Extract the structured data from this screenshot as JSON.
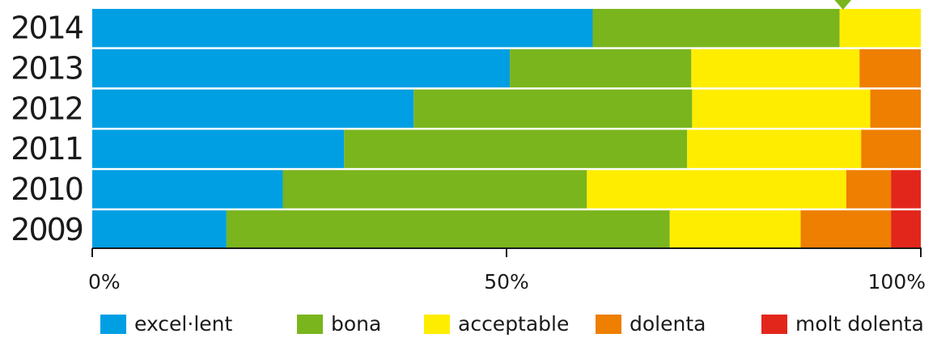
{
  "chart_data": {
    "type": "bar",
    "orientation": "horizontal",
    "stacked": true,
    "percent": true,
    "categories": [
      "2014",
      "2013",
      "2012",
      "2011",
      "2010",
      "2009"
    ],
    "series": [
      {
        "name": "excel·lent",
        "color": "#009fe3",
        "values": [
          60.4,
          50.4,
          38.8,
          30.4,
          23.0,
          16.2
        ]
      },
      {
        "name": "bona",
        "color": "#7ab51d",
        "values": [
          29.8,
          21.9,
          33.6,
          41.4,
          36.7,
          53.5
        ]
      },
      {
        "name": "acceptable",
        "color": "#ffed00",
        "values": [
          9.8,
          20.3,
          21.5,
          21.0,
          31.3,
          15.8
        ]
      },
      {
        "name": "dolenta",
        "color": "#ee7f00",
        "values": [
          0,
          7.4,
          6.1,
          7.2,
          5.4,
          10.9
        ]
      },
      {
        "name": "molt dolenta",
        "color": "#e3261c",
        "values": [
          0,
          0,
          0,
          0,
          3.6,
          3.6
        ]
      }
    ],
    "xlim": [
      0,
      100
    ],
    "xticks": [
      "0%",
      "50%",
      "100%"
    ],
    "xtick_values": [
      0,
      50,
      100
    ],
    "marker": {
      "color": "#7ab51d",
      "category": "2014",
      "value": 90.6
    },
    "legend_position": "bottom"
  }
}
